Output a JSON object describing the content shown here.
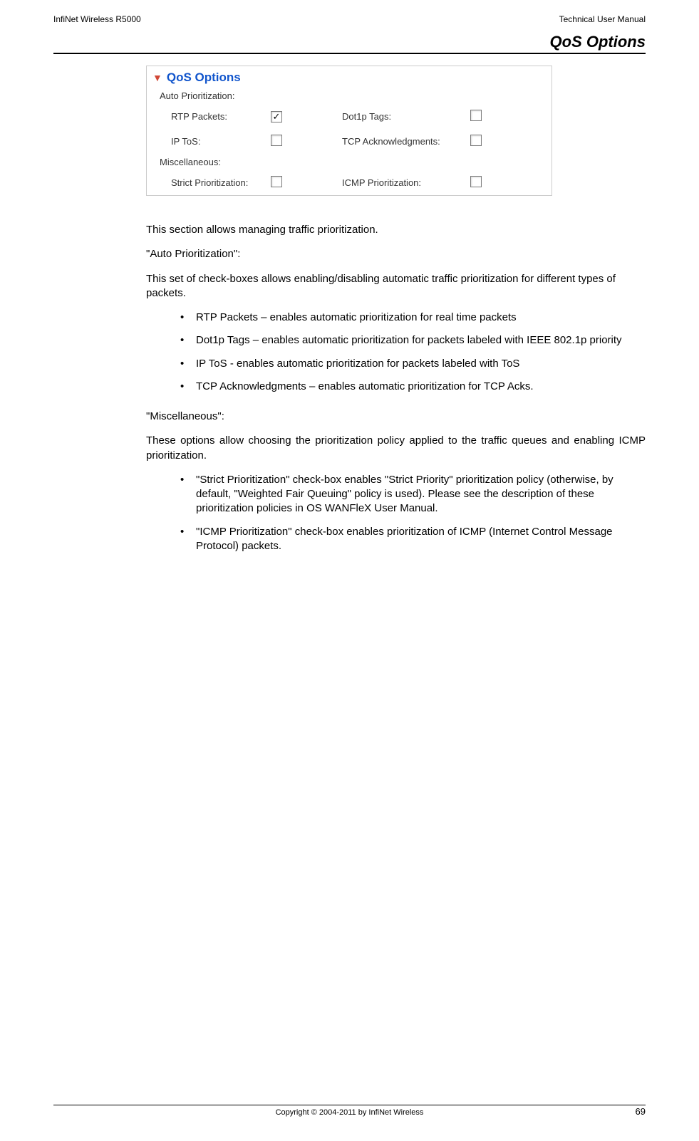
{
  "header": {
    "left": "InfiNet Wireless R5000",
    "right": "Technical User Manual"
  },
  "section_title": "QoS Options",
  "panel": {
    "title": "QoS Options",
    "subheader_auto": "Auto Prioritization:",
    "subheader_misc": "Miscellaneous:",
    "rows": [
      {
        "left_label": "RTP Packets:",
        "left_checked": true,
        "right_label": "Dot1p Tags:",
        "right_checked": false
      },
      {
        "left_label": "IP ToS:",
        "left_checked": false,
        "right_label": "TCP Acknowledgments:",
        "right_checked": false
      }
    ],
    "misc_row": {
      "left_label": "Strict Prioritization:",
      "left_checked": false,
      "right_label": "ICMP Prioritization:",
      "right_checked": false
    },
    "colors": {
      "caret": "#d14836",
      "title": "#1155cc",
      "border": "#cccccc",
      "text": "#333333"
    }
  },
  "paragraphs": {
    "intro": "This section allows managing traffic prioritization.",
    "auto_label": "\"Auto Prioritization\":",
    "auto_desc": "This set of check-boxes allows enabling/disabling automatic traffic prioritization for different types of packets.",
    "misc_label": "\"Miscellaneous\":",
    "misc_desc": "These options allow choosing the prioritization policy applied to the traffic queues and enabling ICMP prioritization."
  },
  "bullets_auto": [
    "RTP Packets – enables automatic prioritization for real time packets",
    "Dot1p Tags – enables automatic prioritization for packets labeled with IEEE 802.1p priority",
    "IP ToS - enables automatic prioritization for packets labeled with ToS",
    "TCP Acknowledgments – enables automatic prioritization for TCP Acks."
  ],
  "bullets_misc": [
    "\"Strict Prioritization\" check-box enables \"Strict Priority\" prioritization policy (otherwise, by default, \"Weighted Fair Queuing\" policy is used). Please see the description of these prioritization policies in OS WANFleX User Manual.",
    "\"ICMP Prioritization\" check-box enables prioritization of ICMP (Internet Control Message Protocol) packets."
  ],
  "footer": {
    "copyright": "Copyright © 2004-2011 by InfiNet Wireless",
    "page": "69"
  }
}
